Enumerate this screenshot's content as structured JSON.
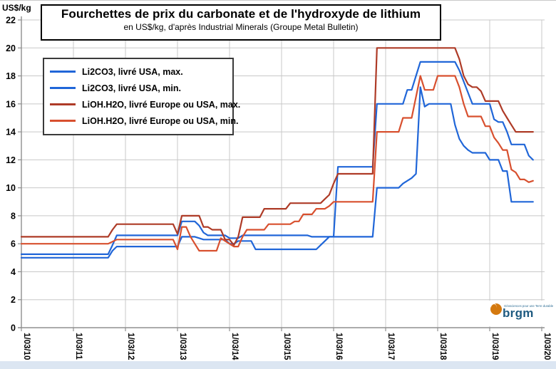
{
  "chart_data": {
    "type": "line",
    "title": "Fourchettes de prix du carbonate et de l'hydroxyde de lithium",
    "subtitle": "en US$/kg, d'après Industrial Minerals (Groupe Metal Bulletin)",
    "y_unit_label": "US$/kg",
    "ylim": [
      0,
      22
    ],
    "y_ticks": [
      0,
      2,
      4,
      6,
      8,
      10,
      12,
      14,
      16,
      18,
      20,
      22
    ],
    "x_tick_labels": [
      "1/03/10",
      "1/03/11",
      "1/03/12",
      "1/03/13",
      "1/03/14",
      "1/03/15",
      "1/03/16",
      "1/03/17",
      "1/03/18",
      "1/03/19",
      "1/03/20"
    ],
    "x_start_month": "2010-03",
    "x_end_month": "2020-01",
    "grid": true,
    "legend_position": "upper-left",
    "series": [
      {
        "name": "Li2CO3, livré USA, max.",
        "color": "#2066d8",
        "values": [
          5.25,
          5.25,
          5.25,
          5.25,
          5.25,
          5.25,
          5.25,
          5.25,
          5.25,
          5.25,
          5.25,
          5.25,
          5.25,
          5.25,
          5.25,
          5.25,
          5.25,
          5.25,
          5.25,
          5.25,
          5.25,
          5.9,
          6.6,
          6.6,
          6.6,
          6.6,
          6.6,
          6.6,
          6.6,
          6.6,
          6.6,
          6.6,
          6.6,
          6.6,
          6.6,
          6.6,
          6.6,
          7.6,
          7.6,
          7.6,
          7.6,
          7.3,
          6.8,
          6.6,
          6.6,
          6.6,
          6.6,
          6.6,
          6.4,
          6.4,
          6.4,
          6.6,
          6.6,
          6.6,
          6.6,
          6.6,
          6.6,
          6.6,
          6.6,
          6.6,
          6.6,
          6.6,
          6.6,
          6.6,
          6.6,
          6.6,
          6.6,
          6.5,
          6.5,
          6.5,
          6.5,
          6.5,
          6.5,
          11.5,
          11.5,
          11.5,
          11.5,
          11.5,
          11.5,
          11.5,
          11.5,
          11.5,
          16,
          16,
          16,
          16,
          16,
          16,
          16,
          17,
          17,
          18,
          19,
          19,
          19,
          19,
          19,
          19,
          19,
          19,
          19,
          18.4,
          17.6,
          16.8,
          16,
          16,
          16,
          16,
          16,
          14.9,
          14.7,
          14.7,
          14,
          13.1,
          13.1,
          13.1,
          13.1,
          12.3,
          12
        ]
      },
      {
        "name": "Li2CO3, livré USA, min.",
        "color": "#2066d8",
        "values": [
          5,
          5,
          5,
          5,
          5,
          5,
          5,
          5,
          5,
          5,
          5,
          5,
          5,
          5,
          5,
          5,
          5,
          5,
          5,
          5,
          5,
          5.5,
          5.8,
          5.8,
          5.8,
          5.8,
          5.8,
          5.8,
          5.8,
          5.8,
          5.8,
          5.8,
          5.8,
          5.8,
          5.8,
          5.8,
          5.8,
          6.5,
          6.5,
          6.5,
          6.5,
          6.4,
          6.3,
          6.3,
          6.3,
          6.3,
          6.3,
          6.3,
          6,
          6,
          6.2,
          6.2,
          6.2,
          6.2,
          5.6,
          5.6,
          5.6,
          5.6,
          5.6,
          5.6,
          5.6,
          5.6,
          5.6,
          5.6,
          5.6,
          5.6,
          5.6,
          5.6,
          5.6,
          5.9,
          6.2,
          6.5,
          6.5,
          6.5,
          6.5,
          6.5,
          6.5,
          6.5,
          6.5,
          6.5,
          6.5,
          6.5,
          10,
          10,
          10,
          10,
          10,
          10,
          10.3,
          10.5,
          10.7,
          11,
          17.2,
          15.8,
          16,
          16,
          16,
          16,
          16,
          16,
          14.5,
          13.5,
          13,
          12.7,
          12.5,
          12.5,
          12.5,
          12.5,
          12,
          12,
          12,
          11.2,
          11.2,
          9,
          9,
          9,
          9,
          9,
          9
        ]
      },
      {
        "name": "LiOH.H2O, livré Europe ou USA, max.",
        "color": "#ae3b27",
        "values": [
          6.5,
          6.5,
          6.5,
          6.5,
          6.5,
          6.5,
          6.5,
          6.5,
          6.5,
          6.5,
          6.5,
          6.5,
          6.5,
          6.5,
          6.5,
          6.5,
          6.5,
          6.5,
          6.5,
          6.5,
          6.5,
          7,
          7.4,
          7.4,
          7.4,
          7.4,
          7.4,
          7.4,
          7.4,
          7.4,
          7.4,
          7.4,
          7.4,
          7.4,
          7.4,
          7.4,
          6.7,
          8,
          8,
          8,
          8,
          8,
          7.2,
          7.2,
          7,
          7,
          7,
          6.3,
          6.3,
          5.9,
          6.5,
          7.9,
          7.9,
          7.9,
          7.9,
          7.9,
          8.5,
          8.5,
          8.5,
          8.5,
          8.5,
          8.5,
          8.9,
          8.9,
          8.9,
          8.9,
          8.9,
          8.9,
          8.9,
          8.9,
          9.2,
          9.5,
          10.3,
          11,
          11,
          11,
          11,
          11,
          11,
          11,
          11,
          11,
          20,
          20,
          20,
          20,
          20,
          20,
          20,
          20,
          20,
          20,
          20,
          20,
          20,
          20,
          20,
          20,
          20,
          20,
          20,
          19.2,
          18,
          17.4,
          17.2,
          17.2,
          16.9,
          16.2,
          16.2,
          16.2,
          16.2,
          15.5,
          15,
          14.5,
          14,
          14,
          14,
          14,
          14
        ]
      },
      {
        "name": "LiOH.H2O, livré Europe ou USA, min.",
        "color": "#d8502f",
        "values": [
          6,
          6,
          6,
          6,
          6,
          6,
          6,
          6,
          6,
          6,
          6,
          6,
          6,
          6,
          6,
          6,
          6,
          6,
          6,
          6,
          6,
          6.15,
          6.3,
          6.3,
          6.3,
          6.3,
          6.3,
          6.3,
          6.3,
          6.3,
          6.3,
          6.3,
          6.3,
          6.3,
          6.3,
          6.3,
          5.6,
          7.2,
          7.2,
          6.5,
          6,
          5.5,
          5.5,
          5.5,
          5.5,
          5.5,
          6.4,
          6.2,
          6,
          5.8,
          5.8,
          6.5,
          7,
          7,
          7,
          7,
          7,
          7.4,
          7.4,
          7.4,
          7.4,
          7.4,
          7.4,
          7.6,
          7.6,
          8.1,
          8.1,
          8.1,
          8.5,
          8.5,
          8.5,
          8.7,
          9,
          9,
          9,
          9,
          9,
          9,
          9,
          9,
          9,
          9,
          14,
          14,
          14,
          14,
          14,
          14,
          15,
          15,
          15,
          16.5,
          18,
          17,
          17,
          17,
          18,
          18,
          18,
          18,
          18,
          17.2,
          16,
          15.1,
          15.1,
          15.1,
          15.1,
          14.4,
          14.4,
          13.6,
          13.2,
          12.7,
          12.7,
          11.3,
          11.1,
          10.6,
          10.6,
          10.4,
          10.5
        ]
      }
    ]
  },
  "logo": {
    "text": "brgm",
    "tagline": "Géosciences pour une Terre durable"
  },
  "style": {
    "grid_color": "#c8c8c8",
    "axis_color": "#8f8f8f",
    "footer_strip_color": "#dce6f2"
  }
}
